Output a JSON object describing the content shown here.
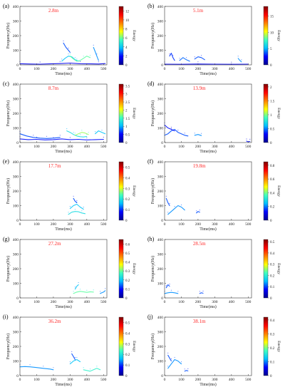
{
  "figure": {
    "shared": {
      "xlabel": "Time(ms)",
      "ylabel": "Frequency(Hz)",
      "colorbar_label": "Energy",
      "xlim": [
        0,
        520
      ],
      "ylim": [
        0,
        400
      ],
      "x_ticks": [
        "0",
        "100",
        "200",
        "300",
        "400",
        "500"
      ],
      "y_ticks": [
        "0",
        "100",
        "200",
        "300",
        "400"
      ],
      "annotation_color": "#ff2a2a",
      "colormap": [
        "#00008f",
        "#0000ff",
        "#00bfff",
        "#40ffbf",
        "#ffff00",
        "#ff8000",
        "#ff0000",
        "#800000"
      ]
    }
  },
  "chart_data": [
    {
      "type": "heatmap",
      "panel_label": "(a)",
      "annotation": "2.8m",
      "cbar_ticks": [
        "0",
        "2",
        "4",
        "6",
        "8",
        "10",
        "12"
      ],
      "cbar_max": 13,
      "ridges": [
        {
          "level": 0.12,
          "pts": [
            [
              0,
              8
            ],
            [
              60,
              6
            ],
            [
              120,
              5
            ],
            [
              180,
              7
            ],
            [
              240,
              9
            ],
            [
              300,
              12
            ],
            [
              360,
              8
            ],
            [
              420,
              7
            ],
            [
              470,
              6
            ],
            [
              510,
              9
            ]
          ]
        },
        {
          "level": 0.3,
          "pts": [
            [
              250,
              25
            ],
            [
              270,
              45
            ],
            [
              290,
              60
            ],
            [
              310,
              55
            ],
            [
              330,
              35
            ],
            [
              350,
              25
            ]
          ]
        },
        {
          "level": 0.45,
          "pts": [
            [
              300,
              60
            ],
            [
              320,
              40
            ],
            [
              340,
              25
            ],
            [
              360,
              30
            ],
            [
              380,
              45
            ],
            [
              400,
              60
            ],
            [
              420,
              50
            ]
          ]
        },
        {
          "level": 0.2,
          "pts": [
            [
              260,
              150
            ],
            [
              275,
              120
            ],
            [
              290,
              100
            ],
            [
              300,
              85
            ]
          ]
        },
        {
          "level": 0.25,
          "pts": [
            [
              440,
              120
            ],
            [
              450,
              90
            ],
            [
              460,
              60
            ],
            [
              470,
              30
            ]
          ]
        }
      ]
    },
    {
      "type": "heatmap",
      "panel_label": "(b)",
      "annotation": "5.1m",
      "cbar_ticks": [
        "0",
        "5",
        "10",
        "15"
      ],
      "cbar_max": 18,
      "ridges": [
        {
          "level": 0.12,
          "pts": [
            [
              0,
              5
            ],
            [
              100,
              4
            ],
            [
              200,
              6
            ],
            [
              300,
              5
            ],
            [
              400,
              4
            ],
            [
              500,
              5
            ]
          ]
        },
        {
          "level": 0.22,
          "pts": [
            [
              90,
              30
            ],
            [
              110,
              50
            ],
            [
              130,
              35
            ],
            [
              150,
              25
            ]
          ]
        },
        {
          "level": 0.2,
          "pts": [
            [
              180,
              40
            ],
            [
              200,
              55
            ],
            [
              220,
              50
            ],
            [
              240,
              35
            ]
          ]
        },
        {
          "level": 0.18,
          "pts": [
            [
              30,
              60
            ],
            [
              40,
              80
            ],
            [
              50,
              50
            ],
            [
              60,
              30
            ]
          ]
        },
        {
          "level": 0.25,
          "pts": [
            [
              440,
              45
            ],
            [
              450,
              30
            ],
            [
              460,
              20
            ]
          ]
        }
      ]
    },
    {
      "type": "heatmap",
      "panel_label": "(c)",
      "annotation": "8.7m",
      "cbar_ticks": [
        "0",
        "0.5",
        "1",
        "1.5",
        "2",
        "2.5",
        "3",
        "3.5"
      ],
      "cbar_max": 3.6,
      "ridges": [
        {
          "level": 0.15,
          "pts": [
            [
              0,
              25
            ],
            [
              50,
              20
            ],
            [
              100,
              22
            ],
            [
              150,
              18
            ],
            [
              200,
              20
            ],
            [
              250,
              25
            ],
            [
              300,
              20
            ],
            [
              350,
              22
            ],
            [
              400,
              18
            ],
            [
              450,
              20
            ],
            [
              500,
              22
            ]
          ]
        },
        {
          "level": 0.2,
          "pts": [
            [
              0,
              60
            ],
            [
              40,
              45
            ],
            [
              80,
              35
            ],
            [
              120,
              30
            ],
            [
              160,
              28
            ],
            [
              200,
              30
            ],
            [
              240,
              35
            ]
          ]
        },
        {
          "level": 0.35,
          "pts": [
            [
              280,
              80
            ],
            [
              300,
              70
            ],
            [
              320,
              55
            ],
            [
              340,
              45
            ],
            [
              360,
              40
            ],
            [
              380,
              38
            ],
            [
              400,
              42
            ]
          ]
        },
        {
          "level": 0.5,
          "pts": [
            [
              330,
              50
            ],
            [
              350,
              60
            ],
            [
              370,
              70
            ],
            [
              390,
              65
            ],
            [
              410,
              55
            ]
          ]
        },
        {
          "level": 0.3,
          "pts": [
            [
              450,
              60
            ],
            [
              470,
              80
            ],
            [
              490,
              70
            ],
            [
              510,
              60
            ]
          ]
        }
      ]
    },
    {
      "type": "heatmap",
      "panel_label": "(d)",
      "annotation": "13.9m",
      "cbar_ticks": [
        "0",
        "0.5",
        "1",
        "1.5",
        "2"
      ],
      "cbar_max": 2.1,
      "ridges": [
        {
          "level": 0.2,
          "pts": [
            [
              0,
              50
            ],
            [
              20,
              60
            ],
            [
              40,
              80
            ],
            [
              60,
              90
            ],
            [
              80,
              70
            ],
            [
              100,
              60
            ],
            [
              120,
              50
            ],
            [
              140,
              45
            ]
          ]
        },
        {
          "level": 0.15,
          "pts": [
            [
              0,
              120
            ],
            [
              20,
              100
            ],
            [
              40,
              90
            ],
            [
              60,
              80
            ]
          ]
        },
        {
          "level": 0.25,
          "pts": [
            [
              180,
              50
            ],
            [
              200,
              55
            ],
            [
              220,
              48
            ]
          ]
        },
        {
          "level": 0.15,
          "pts": [
            [
              490,
              10
            ],
            [
              500,
              5
            ],
            [
              510,
              8
            ]
          ]
        }
      ]
    },
    {
      "type": "heatmap",
      "panel_label": "(e)",
      "annotation": "17.7m",
      "cbar_ticks": [
        "0",
        "0.1",
        "0.2",
        "0.3",
        "0.4",
        "0.5"
      ],
      "cbar_max": 0.55,
      "ridges": [
        {
          "level": 0.35,
          "pts": [
            [
              290,
              40
            ],
            [
              310,
              55
            ],
            [
              330,
              60
            ],
            [
              350,
              58
            ],
            [
              370,
              50
            ],
            [
              390,
              45
            ]
          ]
        },
        {
          "level": 0.3,
          "pts": [
            [
              300,
              80
            ],
            [
              320,
              100
            ],
            [
              340,
              110
            ],
            [
              360,
              90
            ],
            [
              380,
              75
            ]
          ]
        },
        {
          "level": 0.2,
          "pts": [
            [
              320,
              150
            ],
            [
              330,
              130
            ],
            [
              340,
              120
            ]
          ]
        }
      ]
    },
    {
      "type": "heatmap",
      "panel_label": "(f)",
      "annotation": "19.8m",
      "cbar_ticks": [
        "0",
        "0.2",
        "0.4",
        "0.6",
        "0.8"
      ],
      "cbar_max": 0.85,
      "ridges": [
        {
          "level": 0.25,
          "pts": [
            [
              20,
              40
            ],
            [
              40,
              60
            ],
            [
              60,
              80
            ],
            [
              80,
              100
            ],
            [
              100,
              90
            ],
            [
              120,
              70
            ]
          ]
        },
        {
          "level": 0.2,
          "pts": [
            [
              10,
              150
            ],
            [
              20,
              120
            ],
            [
              30,
              100
            ]
          ]
        },
        {
          "level": 0.2,
          "pts": [
            [
              190,
              50
            ],
            [
              200,
              60
            ],
            [
              210,
              55
            ]
          ]
        }
      ]
    },
    {
      "type": "heatmap",
      "panel_label": "(g)",
      "annotation": "27.2m",
      "cbar_ticks": [
        "0",
        "0.1",
        "0.2",
        "0.3",
        "0.4",
        "0.5",
        "0.6"
      ],
      "cbar_max": 0.65,
      "ridges": [
        {
          "level": 0.45,
          "pts": [
            [
              320,
              30
            ],
            [
              340,
              40
            ],
            [
              360,
              45
            ],
            [
              380,
              42
            ],
            [
              400,
              38
            ],
            [
              420,
              42
            ],
            [
              440,
              40
            ]
          ]
        },
        {
          "level": 0.3,
          "pts": [
            [
              330,
              60
            ],
            [
              340,
              80
            ],
            [
              350,
              90
            ]
          ]
        },
        {
          "level": 0.25,
          "pts": [
            [
              480,
              30
            ],
            [
              500,
              40
            ],
            [
              510,
              50
            ]
          ]
        }
      ]
    },
    {
      "type": "heatmap",
      "panel_label": "(h)",
      "annotation": "28.5m",
      "cbar_ticks": [
        "0",
        "0.1",
        "0.2",
        "0.3",
        "0.4",
        "0.5"
      ],
      "cbar_max": 0.52,
      "ridges": [
        {
          "level": 0.25,
          "pts": [
            [
              0,
              30
            ],
            [
              20,
              35
            ],
            [
              40,
              38
            ],
            [
              60,
              35
            ],
            [
              80,
              30
            ]
          ]
        },
        {
          "level": 0.2,
          "pts": [
            [
              10,
              70
            ],
            [
              20,
              90
            ],
            [
              30,
              80
            ]
          ]
        },
        {
          "level": 0.2,
          "pts": [
            [
              210,
              30
            ],
            [
              220,
              35
            ],
            [
              230,
              32
            ]
          ]
        }
      ]
    },
    {
      "type": "heatmap",
      "panel_label": "(i)",
      "annotation": "36.2m",
      "cbar_ticks": [
        "0",
        "0.1",
        "0.2",
        "0.3",
        "0.4",
        "0.5"
      ],
      "cbar_max": 0.55,
      "ridges": [
        {
          "level": 0.25,
          "pts": [
            [
              0,
              60
            ],
            [
              30,
              62
            ],
            [
              60,
              60
            ],
            [
              100,
              55
            ],
            [
              140,
              50
            ],
            [
              180,
              45
            ],
            [
              200,
              40
            ]
          ]
        },
        {
          "level": 0.3,
          "pts": [
            [
              300,
              80
            ],
            [
              320,
              100
            ],
            [
              340,
              110
            ],
            [
              360,
              95
            ]
          ]
        },
        {
          "level": 0.4,
          "pts": [
            [
              380,
              40
            ],
            [
              400,
              35
            ],
            [
              420,
              30
            ],
            [
              440,
              40
            ],
            [
              460,
              50
            ],
            [
              480,
              40
            ]
          ]
        },
        {
          "level": 0.2,
          "pts": [
            [
              310,
              150
            ],
            [
              320,
              130
            ],
            [
              330,
              110
            ]
          ]
        }
      ]
    },
    {
      "type": "heatmap",
      "panel_label": "(j)",
      "annotation": "38.1m",
      "cbar_ticks": [
        "0",
        "0.1",
        "0.2",
        "0.3",
        "0.4"
      ],
      "cbar_max": 0.42,
      "ridges": [
        {
          "level": 0.25,
          "pts": [
            [
              20,
              50
            ],
            [
              40,
              80
            ],
            [
              60,
              110
            ],
            [
              80,
              100
            ],
            [
              100,
              80
            ]
          ]
        },
        {
          "level": 0.2,
          "pts": [
            [
              20,
              140
            ],
            [
              30,
              120
            ],
            [
              40,
              100
            ]
          ]
        },
        {
          "level": 0.2,
          "pts": [
            [
              120,
              30
            ],
            [
              130,
              35
            ],
            [
              140,
              32
            ]
          ]
        }
      ]
    }
  ]
}
